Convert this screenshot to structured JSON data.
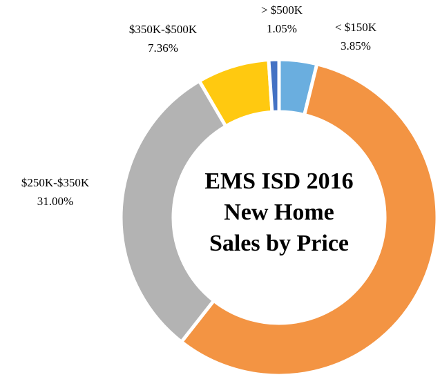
{
  "chart_data": {
    "type": "donut",
    "title": "EMS ISD 2016 New Home Sales by Price",
    "categories": [
      "< $150K",
      null,
      "$250K-$350K",
      "$350K-$500K",
      "> $500K"
    ],
    "values": [
      3.85,
      56.74,
      31.0,
      7.36,
      1.05
    ],
    "value_labels": [
      "3.85%",
      null,
      "31.00%",
      "7.36%",
      "1.05%"
    ],
    "colors": [
      "#6aaedf",
      "#f39443",
      "#b3b3b3",
      "#ffc910",
      "#4472c4"
    ]
  }
}
